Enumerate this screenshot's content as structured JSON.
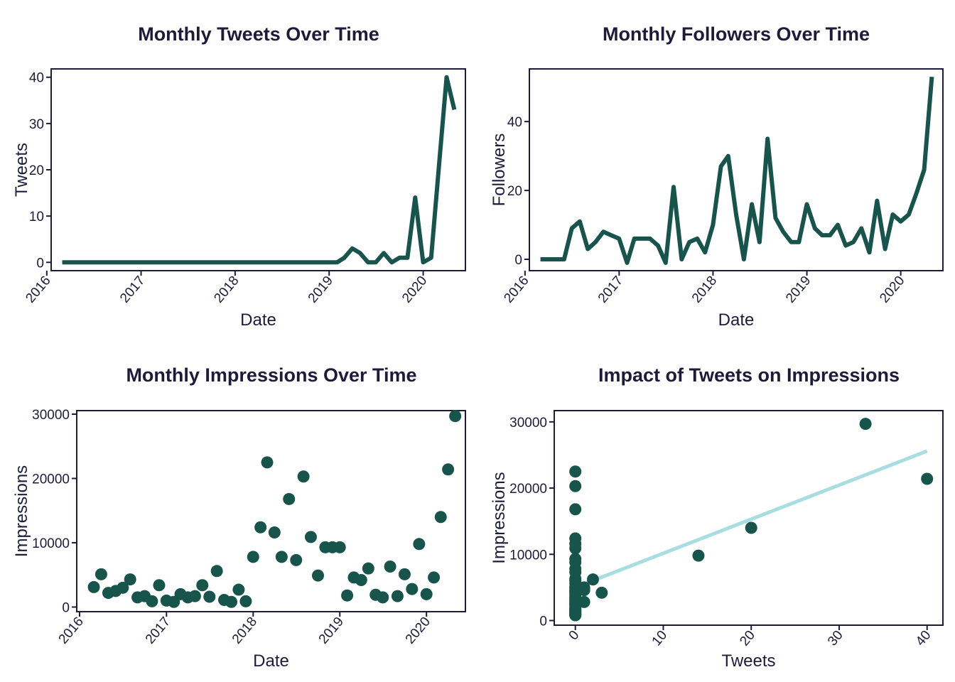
{
  "colors": {
    "line": "#17554c",
    "point": "#17554c",
    "fit": "#a8dee0",
    "frame": "#1c1c3a",
    "text": "#1c1c3a"
  },
  "chart_data": [
    {
      "type": "line",
      "title": "Monthly Tweets Over Time",
      "xlabel": "Date",
      "ylabel": "Tweets",
      "x_type": "date",
      "xlim": [
        "2016-01-18",
        "2020-06-13"
      ],
      "ylim": [
        -1.8,
        41.8
      ],
      "x_ticks": [
        "2016",
        "2017",
        "2018",
        "2019",
        "2020"
      ],
      "y_ticks": [
        0,
        10,
        20,
        30,
        40
      ],
      "grid": false,
      "x": [
        "2016-03",
        "2016-04",
        "2016-05",
        "2016-06",
        "2016-07",
        "2016-08",
        "2016-09",
        "2016-10",
        "2016-11",
        "2016-12",
        "2017-01",
        "2017-02",
        "2017-03",
        "2017-04",
        "2017-05",
        "2017-06",
        "2017-07",
        "2017-08",
        "2017-09",
        "2017-10",
        "2017-11",
        "2017-12",
        "2018-01",
        "2018-02",
        "2018-03",
        "2018-04",
        "2018-05",
        "2018-06",
        "2018-07",
        "2018-08",
        "2018-09",
        "2018-10",
        "2018-11",
        "2018-12",
        "2019-01",
        "2019-02",
        "2019-03",
        "2019-04",
        "2019-05",
        "2019-06",
        "2019-07",
        "2019-08",
        "2019-09",
        "2019-10",
        "2019-11",
        "2019-12",
        "2020-01",
        "2020-02",
        "2020-03",
        "2020-04",
        "2020-05"
      ],
      "values": [
        0,
        0,
        0,
        0,
        0,
        0,
        0,
        0,
        0,
        0,
        0,
        0,
        0,
        0,
        0,
        0,
        0,
        0,
        0,
        0,
        0,
        0,
        0,
        0,
        0,
        0,
        0,
        0,
        0,
        0,
        0,
        0,
        0,
        0,
        0,
        0,
        1,
        3,
        2,
        0,
        0,
        2,
        0,
        1,
        1,
        14,
        0,
        1,
        20,
        40,
        33
      ]
    },
    {
      "type": "line",
      "title": "Monthly Followers Over Time",
      "xlabel": "Date",
      "ylabel": "Followers",
      "x_type": "date",
      "xlim": [
        "2016-01-18",
        "2020-06-13"
      ],
      "ylim": [
        -3.3,
        55.3
      ],
      "x_ticks": [
        "2016",
        "2017",
        "2018",
        "2019",
        "2020"
      ],
      "y_ticks": [
        0,
        20,
        40
      ],
      "grid": false,
      "x": [
        "2016-03",
        "2016-04",
        "2016-05",
        "2016-06",
        "2016-07",
        "2016-08",
        "2016-09",
        "2016-10",
        "2016-11",
        "2016-12",
        "2017-01",
        "2017-02",
        "2017-03",
        "2017-04",
        "2017-05",
        "2017-06",
        "2017-07",
        "2017-08",
        "2017-09",
        "2017-10",
        "2017-11",
        "2017-12",
        "2018-01",
        "2018-02",
        "2018-03",
        "2018-04",
        "2018-05",
        "2018-06",
        "2018-07",
        "2018-08",
        "2018-09",
        "2018-10",
        "2018-11",
        "2018-12",
        "2019-01",
        "2019-02",
        "2019-03",
        "2019-04",
        "2019-05",
        "2019-06",
        "2019-07",
        "2019-08",
        "2019-09",
        "2019-10",
        "2019-11",
        "2019-12",
        "2020-01",
        "2020-02",
        "2020-03",
        "2020-04",
        "2020-05"
      ],
      "values": [
        0,
        0,
        0,
        0,
        9,
        11,
        3,
        5,
        8,
        7,
        6,
        -1,
        6,
        6,
        6,
        4,
        -1,
        21,
        0,
        5,
        6,
        2,
        10,
        27,
        30,
        13,
        0,
        16,
        5,
        35,
        12,
        8,
        5,
        5,
        16,
        9,
        7,
        7,
        10,
        4,
        5,
        9,
        2,
        17,
        3,
        13,
        11,
        13,
        19,
        26,
        53
      ]
    },
    {
      "type": "scatter",
      "title": "Monthly Impressions Over Time",
      "xlabel": "Date",
      "ylabel": "Impressions",
      "x_type": "date",
      "xlim": [
        "2015-12-20",
        "2020-06-13"
      ],
      "ylim": [
        -720,
        30550
      ],
      "x_ticks": [
        "2016",
        "2017",
        "2018",
        "2019",
        "2020"
      ],
      "y_ticks": [
        0,
        10000,
        20000,
        30000
      ],
      "grid": false,
      "x": [
        "2016-03",
        "2016-04",
        "2016-05",
        "2016-06",
        "2016-07",
        "2016-08",
        "2016-09",
        "2016-10",
        "2016-11",
        "2016-12",
        "2017-01",
        "2017-02",
        "2017-03",
        "2017-04",
        "2017-05",
        "2017-06",
        "2017-07",
        "2017-08",
        "2017-09",
        "2017-10",
        "2017-11",
        "2017-12",
        "2018-01",
        "2018-02",
        "2018-03",
        "2018-04",
        "2018-05",
        "2018-06",
        "2018-07",
        "2018-08",
        "2018-09",
        "2018-10",
        "2018-11",
        "2018-12",
        "2019-01",
        "2019-02",
        "2019-03",
        "2019-04",
        "2019-05",
        "2019-06",
        "2019-07",
        "2019-08",
        "2019-09",
        "2019-10",
        "2019-11",
        "2019-12",
        "2020-01",
        "2020-02",
        "2020-03",
        "2020-04",
        "2020-05"
      ],
      "values": [
        3100,
        5100,
        2200,
        2500,
        3000,
        4300,
        1500,
        1700,
        900,
        3400,
        1000,
        800,
        2000,
        1500,
        1700,
        3400,
        1600,
        5600,
        1100,
        800,
        2700,
        900,
        7800,
        12400,
        22500,
        11600,
        7800,
        16800,
        7300,
        20300,
        10900,
        4900,
        9300,
        9300,
        9300,
        1800,
        4600,
        4200,
        6000,
        1900,
        1500,
        6300,
        1700,
        5100,
        2800,
        9800,
        2000,
        4600,
        14000,
        21400,
        29700
      ]
    },
    {
      "type": "scatter",
      "title": "Impact of Tweets on Impressions",
      "xlabel": "Tweets",
      "ylabel": "Impressions",
      "xlim": [
        -2.4,
        41.8
      ],
      "ylim": [
        -700,
        31700
      ],
      "x_ticks": [
        0,
        10,
        20,
        30,
        40
      ],
      "y_ticks": [
        0,
        10000,
        20000,
        30000
      ],
      "grid": false,
      "x": [
        0,
        0,
        0,
        0,
        0,
        0,
        0,
        0,
        0,
        0,
        0,
        0,
        0,
        0,
        0,
        0,
        0,
        0,
        0,
        0,
        0,
        0,
        0,
        0,
        0,
        0,
        0,
        0,
        0,
        0,
        0,
        0,
        0,
        0,
        0,
        0,
        0,
        0,
        0,
        0,
        0,
        1,
        1,
        1,
        2,
        3,
        14,
        20,
        33,
        40
      ],
      "values": [
        22500,
        20300,
        16800,
        12400,
        11600,
        10900,
        9300,
        8800,
        7800,
        7300,
        6300,
        6000,
        5600,
        5100,
        4900,
        4600,
        4400,
        4200,
        3900,
        3600,
        3400,
        3200,
        3000,
        2800,
        2600,
        2400,
        2200,
        2000,
        1800,
        1700,
        1600,
        1500,
        1400,
        1200,
        1100,
        1000,
        900,
        800,
        800,
        1300,
        2500,
        4600,
        2800,
        5000,
        6200,
        4200,
        9800,
        14000,
        29700,
        21400
      ],
      "fit": {
        "x": [
          0,
          40
        ],
        "y": [
          5000,
          25600
        ]
      }
    }
  ]
}
